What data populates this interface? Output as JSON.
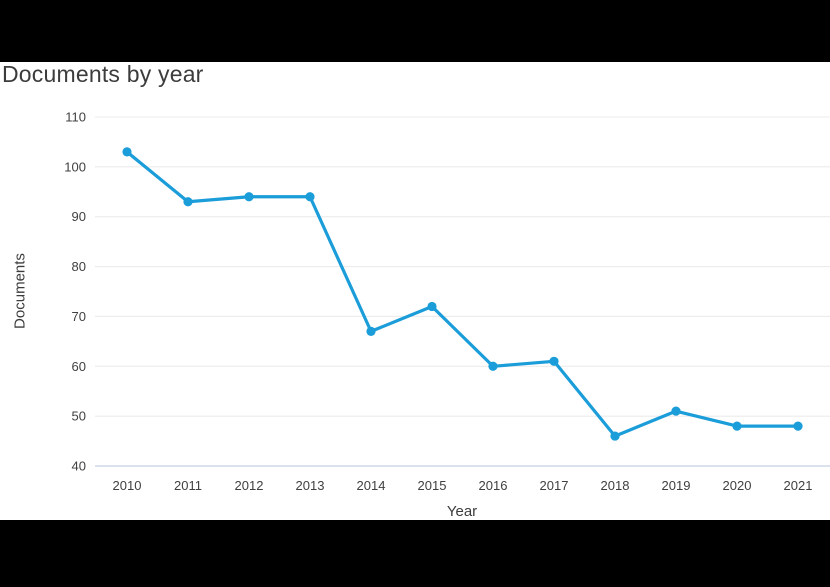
{
  "chart_data": {
    "type": "line",
    "title": "Documents by year",
    "xlabel": "Year",
    "ylabel": "Documents",
    "categories": [
      "2010",
      "2011",
      "2012",
      "2013",
      "2014",
      "2015",
      "2016",
      "2017",
      "2018",
      "2019",
      "2020",
      "2021"
    ],
    "series": [
      {
        "name": "Documents",
        "values": [
          103,
          93,
          94,
          94,
          67,
          72,
          60,
          61,
          46,
          51,
          48,
          48
        ]
      }
    ],
    "values": [
      103,
      93,
      94,
      94,
      67,
      72,
      60,
      61,
      46,
      51,
      48,
      48
    ],
    "ylim": [
      40,
      110
    ],
    "yticks": [
      40,
      50,
      60,
      70,
      80,
      90,
      100,
      110
    ],
    "grid": "horizontal",
    "legend": "none",
    "colors": {
      "line": "#1b9dd9",
      "marker": "#1b9dd9",
      "gridline": "#ececec",
      "axis_line": "#cfd9e8",
      "tick_label": "#404040",
      "title_text": "#3c3c3c",
      "axis_label_text": "#3c3c3c",
      "top_bar": "#000000",
      "bottom_bar": "#000000",
      "background": "#ffffff"
    }
  }
}
